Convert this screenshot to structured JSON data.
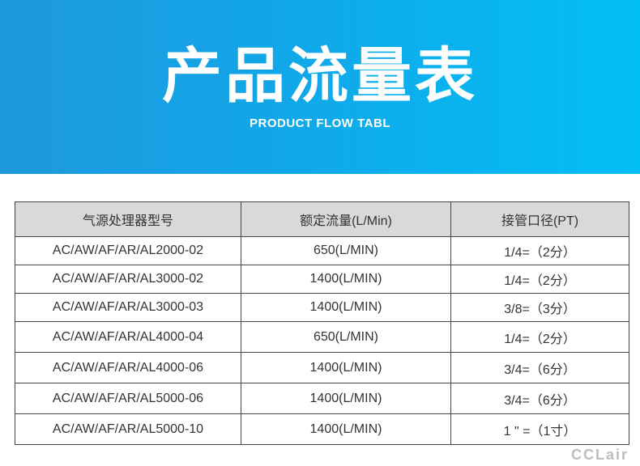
{
  "banner": {
    "title": "产品流量表",
    "subtitle": "PRODUCT FLOW TABL"
  },
  "watermark": "CCLair",
  "table": {
    "headers": [
      "气源处理器型号",
      "额定流量(L/Min)",
      "接管口径(PT)"
    ],
    "rows": [
      [
        "AC/AW/AF/AR/AL2000-02",
        "650(L/MIN)",
        "1/4=（2分）"
      ],
      [
        "AC/AW/AF/AR/AL3000-02",
        "1400(L/MIN)",
        "1/4=（2分）"
      ],
      [
        "AC/AW/AF/AR/AL3000-03",
        "1400(L/MIN)",
        "3/8=（3分）"
      ],
      [
        "AC/AW/AF/AR/AL4000-04",
        "650(L/MIN)",
        "1/4=（2分）"
      ],
      [
        "AC/AW/AF/AR/AL4000-06",
        "1400(L/MIN)",
        "3/4=（6分）"
      ],
      [
        "AC/AW/AF/AR/AL5000-06",
        "1400(L/MIN)",
        "3/4=（6分）"
      ],
      [
        "AC/AW/AF/AR/AL5000-10",
        "1400(L/MIN)",
        "1 \" =（1寸）"
      ]
    ]
  }
}
